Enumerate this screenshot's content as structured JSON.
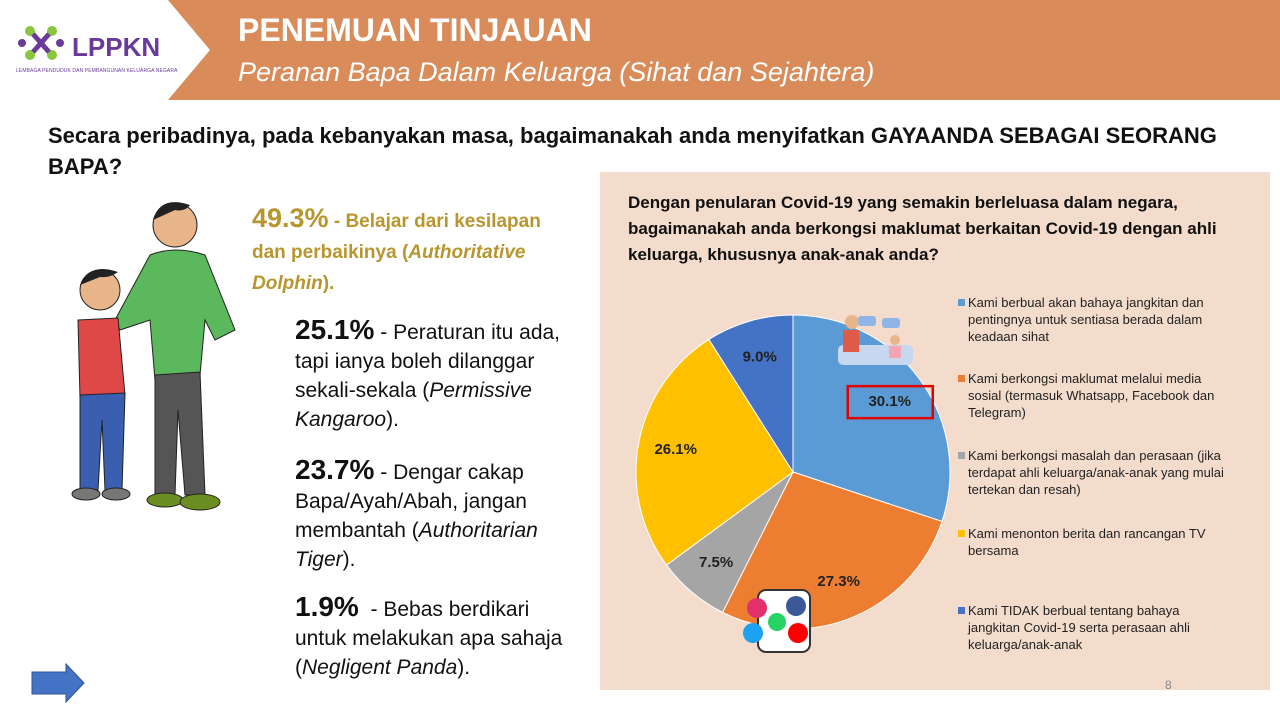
{
  "header": {
    "title": "PENEMUAN TINJAUAN",
    "subtitle": "Peranan Bapa Dalam Keluarga (Sihat dan Sejahtera)",
    "logo": "LPPKN",
    "logo_subtitle": "LEMBAGA PENDUDUK DAN PEMBANGUNAN KELUARGA NEGARA"
  },
  "question": "Secara peribadinya, pada kebanyakan masa, bagaimanakah anda menyifatkan GAYAANDA SEBAGAI SEORANG BAPA?",
  "styles": [
    {
      "percent": "49.3%",
      "text": " - Belajar dari kesilapan dan perbaikinya (",
      "italic": "Authoritative Dolphin",
      "end": ")."
    },
    {
      "percent": "25.1%",
      "text": " - Peraturan itu ada, tapi ianya boleh dilanggar sekali-sekala (",
      "italic": "Permissive Kangaroo",
      "end": ")."
    },
    {
      "percent": "23.7%",
      "text": " - Dengar cakap Bapa/Ayah/Abah, jangan membantah (",
      "italic": "Authoritarian Tiger",
      "end": ")."
    },
    {
      "percent": "1.9%",
      "text": "  - Bebas berdikari untuk melakukan apa sahaja (",
      "italic": "Negligent Panda",
      "end": ")."
    }
  ],
  "chart_data": {
    "type": "pie",
    "title": "Dengan penularan Covid-19 yang semakin berleluasa dalam negara, bagaimanakah anda berkongsi maklumat berkaitan Covid-19 dengan ahli keluarga, khususnya anak-anak anda?",
    "series": [
      {
        "name": "Kami berbual akan bahaya jangkitan dan pentingnya untuk sentiasa berada dalam keadaan sihat",
        "color": "#5b9bd5",
        "values": [
          30.1
        ],
        "value_labels": [
          "30.1%"
        ]
      },
      {
        "name": "Kami berkongsi maklumat melalui media sosial (termasuk Whatsapp, Facebook dan Telegram)",
        "color": "#ed7d31",
        "values": [
          27.3
        ],
        "value_labels": [
          "27.3%"
        ]
      },
      {
        "name": "Kami berkongsi masalah dan perasaan (jika terdapat ahli keluarga/anak-anak yang mulai tertekan dan resah)",
        "color": "#a5a5a5",
        "values": [
          7.5
        ],
        "value_labels": [
          "7.5%"
        ]
      },
      {
        "name": "Kami menonton berita dan rancangan TV bersama",
        "color": "#ffc000",
        "values": [
          26.1
        ],
        "value_labels": [
          "26.1%"
        ]
      },
      {
        "name": "Kami TIDAK berbual tentang bahaya jangkitan Covid-19 serta perasaan ahli keluarga/anak-anak",
        "color": "#4472c4",
        "values": [
          9.0
        ],
        "value_labels": [
          "9.0%"
        ]
      }
    ]
  },
  "page_number": "8"
}
